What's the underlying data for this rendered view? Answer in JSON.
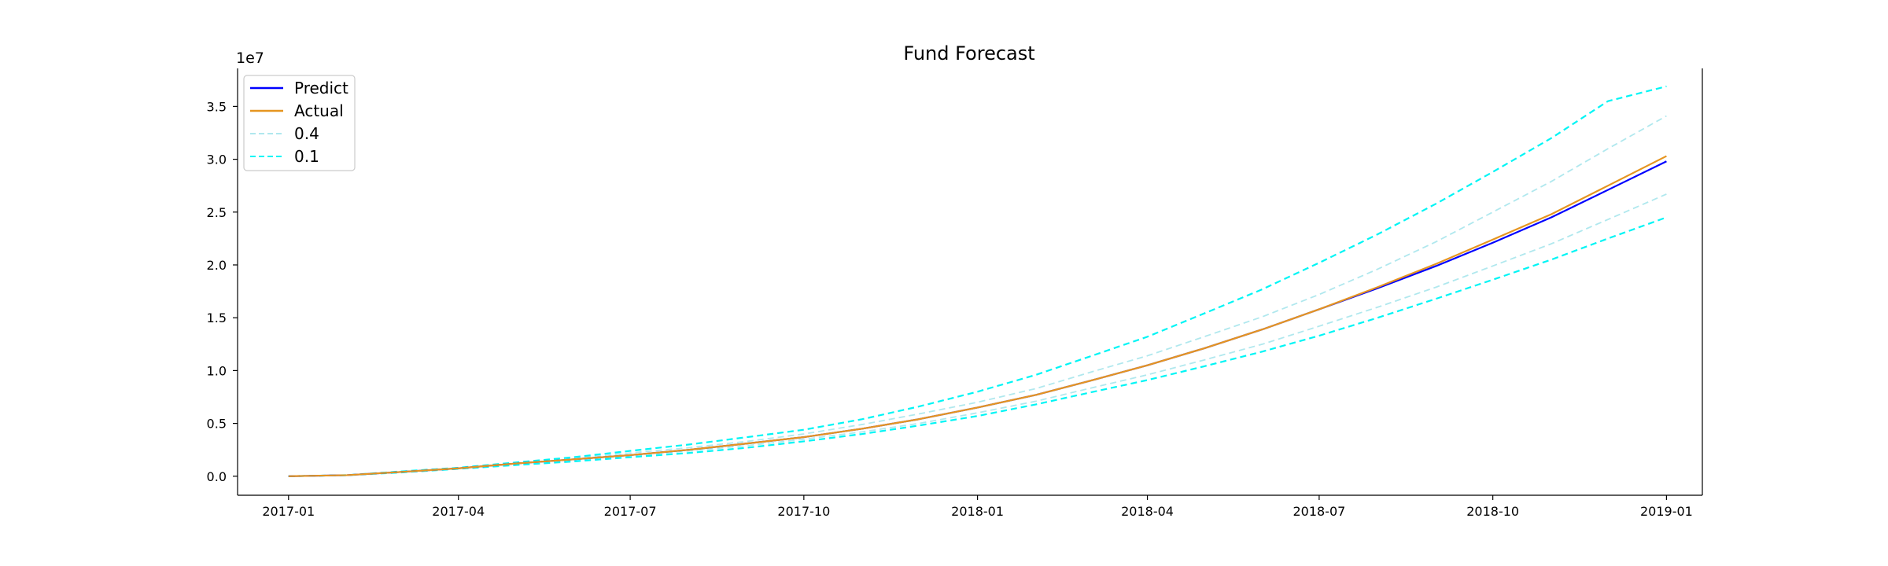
{
  "chart_data": {
    "type": "line",
    "title": "Fund Forecast",
    "xlabel": "",
    "ylabel": "",
    "y_offset_label": "1e7",
    "y_scale_factor": 10000000,
    "x": [
      "2017-01-01",
      "2017-02-01",
      "2017-03-01",
      "2017-04-01",
      "2017-05-01",
      "2017-06-01",
      "2017-07-01",
      "2017-08-01",
      "2017-09-01",
      "2017-10-01",
      "2017-11-01",
      "2017-12-01",
      "2018-01-01",
      "2018-02-01",
      "2018-03-01",
      "2018-04-01",
      "2018-05-01",
      "2018-06-01",
      "2018-07-01",
      "2018-08-01",
      "2018-09-01",
      "2018-10-01",
      "2018-11-01",
      "2018-12-01",
      "2019-01-01"
    ],
    "xlim": [
      "2016-12-05",
      "2019-01-20"
    ],
    "ylim": [
      -1.8,
      38.6
    ],
    "x_ticks": [
      {
        "date": "2017-01-01",
        "label": "2017-01"
      },
      {
        "date": "2017-04-01",
        "label": "2017-04"
      },
      {
        "date": "2017-07-01",
        "label": "2017-07"
      },
      {
        "date": "2017-10-01",
        "label": "2017-10"
      },
      {
        "date": "2018-01-01",
        "label": "2018-01"
      },
      {
        "date": "2018-04-01",
        "label": "2018-04"
      },
      {
        "date": "2018-07-01",
        "label": "2018-07"
      },
      {
        "date": "2018-10-01",
        "label": "2018-10"
      },
      {
        "date": "2019-01-01",
        "label": "2019-01"
      }
    ],
    "y_ticks": [
      {
        "value": 0,
        "label": "0.0"
      },
      {
        "value": 5,
        "label": "0.5"
      },
      {
        "value": 10,
        "label": "1.0"
      },
      {
        "value": 15,
        "label": "1.5"
      },
      {
        "value": 20,
        "label": "2.0"
      },
      {
        "value": 25,
        "label": "2.5"
      },
      {
        "value": 30,
        "label": "3.0"
      },
      {
        "value": 35,
        "label": "3.5"
      }
    ],
    "grid": false,
    "legend_position": "upper-left",
    "series": [
      {
        "key": "predict",
        "name": "Predict",
        "color": "#0000ff",
        "dash": "solid",
        "width": 2.2,
        "values": [
          0.0,
          0.1,
          0.4,
          0.75,
          1.2,
          1.6,
          2.0,
          2.5,
          3.1,
          3.7,
          4.5,
          5.4,
          6.5,
          7.7,
          9.0,
          10.5,
          12.1,
          13.9,
          15.8,
          17.8,
          19.9,
          22.1,
          24.5,
          27.1,
          29.8
        ]
      },
      {
        "key": "actual",
        "name": "Actual",
        "color": "#e69520",
        "dash": "solid",
        "width": 2.2,
        "values": [
          0.0,
          0.1,
          0.4,
          0.75,
          1.2,
          1.6,
          2.0,
          2.5,
          3.1,
          3.7,
          4.5,
          5.4,
          6.5,
          7.7,
          9.0,
          10.5,
          12.1,
          13.9,
          15.8,
          17.9,
          20.1,
          22.4,
          24.8,
          27.5,
          30.3
        ]
      },
      {
        "key": "q04_upper",
        "name": "0.4",
        "color": "#b0e8ee",
        "dash": "dashed",
        "width": 1.8,
        "values": [
          0.0,
          0.1,
          0.4,
          0.8,
          1.2,
          1.7,
          2.2,
          2.7,
          3.3,
          4.0,
          4.9,
          5.9,
          7.0,
          8.3,
          9.8,
          11.4,
          13.2,
          15.1,
          17.2,
          19.6,
          22.2,
          25.0,
          27.9,
          31.0,
          34.1
        ]
      },
      {
        "key": "q04_lower",
        "name": "",
        "color": "#b0e8ee",
        "dash": "dashed",
        "width": 1.8,
        "values": [
          0.0,
          0.1,
          0.4,
          0.75,
          1.1,
          1.5,
          1.9,
          2.4,
          2.9,
          3.5,
          4.2,
          5.0,
          6.0,
          7.1,
          8.3,
          9.6,
          11.0,
          12.5,
          14.2,
          16.0,
          17.9,
          19.9,
          22.0,
          24.3,
          26.7
        ]
      },
      {
        "key": "q01_upper",
        "name": "0.1",
        "color": "#00f5f5",
        "dash": "dashed",
        "width": 2.2,
        "values": [
          0.0,
          0.1,
          0.45,
          0.8,
          1.3,
          1.8,
          2.4,
          3.0,
          3.7,
          4.4,
          5.4,
          6.6,
          8.0,
          9.6,
          11.3,
          13.2,
          15.4,
          17.7,
          20.2,
          22.9,
          25.8,
          28.8,
          32.0,
          35.5,
          36.9
        ]
      },
      {
        "key": "q01_lower",
        "name": "",
        "color": "#00f5f5",
        "dash": "dashed",
        "width": 2.2,
        "values": [
          0.0,
          0.1,
          0.35,
          0.7,
          1.05,
          1.4,
          1.8,
          2.2,
          2.7,
          3.3,
          4.0,
          4.8,
          5.7,
          6.8,
          7.9,
          9.1,
          10.4,
          11.8,
          13.3,
          15.0,
          16.8,
          18.6,
          20.5,
          22.5,
          24.5
        ]
      }
    ],
    "legend": [
      {
        "label": "Predict",
        "color": "#0000ff",
        "dash": "solid"
      },
      {
        "label": "Actual",
        "color": "#e69520",
        "dash": "solid"
      },
      {
        "label": "0.4",
        "color": "#b0e8ee",
        "dash": "dashed"
      },
      {
        "label": "0.1",
        "color": "#00f5f5",
        "dash": "dashed"
      }
    ]
  }
}
